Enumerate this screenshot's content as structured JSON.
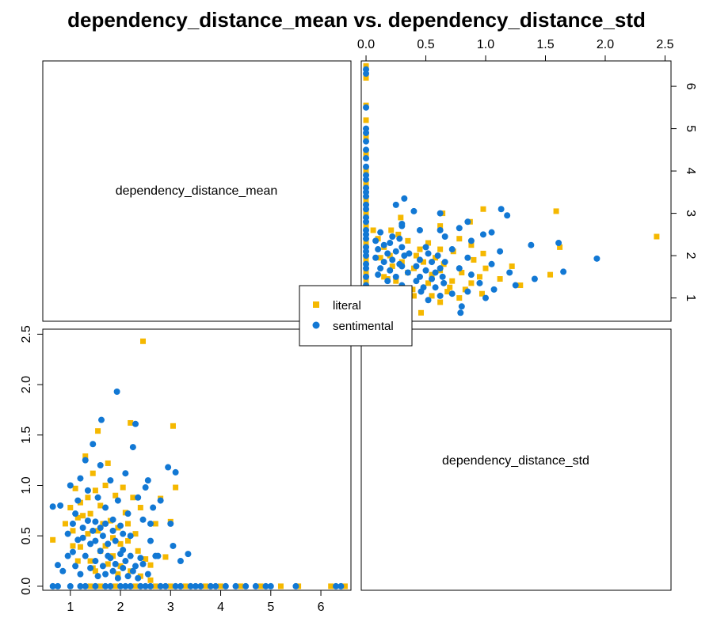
{
  "chart_data": {
    "type": "scatter",
    "layout": "pairs-matrix",
    "title": "dependency_distance_mean vs. dependency_distance_std",
    "variables": [
      "dependency_distance_mean",
      "dependency_distance_std"
    ],
    "axes": {
      "dependency_distance_mean": {
        "range": [
          0.45,
          6.6
        ],
        "ticks": [
          1,
          2,
          3,
          4,
          5,
          6
        ]
      },
      "dependency_distance_std": {
        "range": [
          -0.04,
          2.55
        ],
        "ticks": [
          0.0,
          0.5,
          1.0,
          1.5,
          2.0,
          2.5
        ]
      }
    },
    "tick_labels": {
      "mean": [
        "1",
        "2",
        "3",
        "4",
        "5",
        "6"
      ],
      "std": [
        "0.0",
        "0.5",
        "1.0",
        "1.5",
        "2.0",
        "2.5"
      ]
    },
    "legend": {
      "placement": "center",
      "entries": [
        {
          "name": "literal",
          "color": "#F5B800",
          "marker": "square"
        },
        {
          "name": "sentimental",
          "color": "#1278D4",
          "marker": "circle"
        }
      ]
    },
    "series": [
      {
        "name": "literal",
        "color": "#F5B800",
        "marker": "square",
        "points": [
          [
            0.65,
            0.46
          ],
          [
            0.9,
            0.62
          ],
          [
            1.0,
            0.78
          ],
          [
            1.05,
            0.55
          ],
          [
            1.1,
            0.97
          ],
          [
            1.15,
            0.68
          ],
          [
            1.2,
            0.83
          ],
          [
            1.2,
            0.39
          ],
          [
            1.3,
            1.29
          ],
          [
            1.35,
            0.88
          ],
          [
            1.4,
            0.72
          ],
          [
            1.45,
            1.12
          ],
          [
            1.5,
            0.95
          ],
          [
            1.55,
            0.55
          ],
          [
            1.55,
            1.54
          ],
          [
            1.6,
            0.8
          ],
          [
            1.65,
            0.62
          ],
          [
            1.7,
            1.0
          ],
          [
            1.75,
            1.22
          ],
          [
            1.8,
            0.65
          ],
          [
            1.85,
            0.48
          ],
          [
            1.9,
            0.9
          ],
          [
            1.95,
            0.58
          ],
          [
            2.0,
            0.42
          ],
          [
            2.05,
            0.98
          ],
          [
            2.1,
            0.73
          ],
          [
            2.15,
            0.62
          ],
          [
            2.2,
            1.62
          ],
          [
            2.25,
            0.88
          ],
          [
            2.3,
            0.52
          ],
          [
            2.35,
            0.35
          ],
          [
            2.4,
            0.78
          ],
          [
            2.45,
            2.43
          ],
          [
            2.5,
            0.27
          ],
          [
            2.6,
            0.21
          ],
          [
            2.7,
            0.62
          ],
          [
            2.8,
            0.87
          ],
          [
            2.9,
            0.29
          ],
          [
            3.0,
            0.64
          ],
          [
            3.05,
            1.59
          ],
          [
            3.1,
            0.98
          ],
          [
            1.4,
            0.25
          ],
          [
            1.5,
            0.15
          ],
          [
            1.7,
            0.4
          ],
          [
            1.85,
            0.3
          ],
          [
            2.0,
            0.2
          ],
          [
            2.2,
            0.15
          ],
          [
            2.6,
            0.06
          ],
          [
            1.25,
            0.7
          ],
          [
            1.6,
            0.35
          ],
          [
            1.05,
            0.4
          ],
          [
            1.35,
            0.52
          ],
          [
            1.75,
            0.22
          ],
          [
            1.95,
            0.12
          ],
          [
            2.15,
            0.45
          ],
          [
            2.4,
            0.1
          ],
          [
            1.15,
            0.25
          ],
          [
            1.45,
            0.18
          ],
          [
            1.4,
            0.0
          ],
          [
            1.6,
            0.0
          ],
          [
            1.9,
            0.0
          ],
          [
            2.3,
            0.0
          ],
          [
            2.7,
            0.0
          ],
          [
            3.0,
            0.0
          ],
          [
            3.3,
            0.0
          ],
          [
            3.7,
            0.0
          ],
          [
            4.0,
            0.0
          ],
          [
            4.4,
            0.0
          ],
          [
            4.8,
            0.0
          ],
          [
            5.2,
            0.0
          ],
          [
            5.55,
            0.0
          ],
          [
            6.2,
            0.0
          ],
          [
            6.48,
            0.0
          ]
        ]
      },
      {
        "name": "sentimental",
        "color": "#1278D4",
        "marker": "circle",
        "points": [
          [
            0.65,
            0.79
          ],
          [
            0.75,
            0.21
          ],
          [
            0.8,
            0.8
          ],
          [
            0.85,
            0.15
          ],
          [
            0.95,
            0.52
          ],
          [
            1.0,
            1.0
          ],
          [
            1.05,
            0.34
          ],
          [
            1.1,
            0.72
          ],
          [
            1.15,
            0.46
          ],
          [
            1.2,
            1.07
          ],
          [
            1.25,
            0.58
          ],
          [
            1.3,
            1.25
          ],
          [
            1.35,
            0.95
          ],
          [
            1.4,
            0.42
          ],
          [
            1.45,
            1.41
          ],
          [
            1.5,
            0.64
          ],
          [
            1.55,
            0.88
          ],
          [
            1.6,
            1.2
          ],
          [
            1.62,
            1.65
          ],
          [
            1.65,
            0.5
          ],
          [
            1.7,
            0.78
          ],
          [
            1.75,
            0.3
          ],
          [
            1.8,
            1.05
          ],
          [
            1.85,
            0.66
          ],
          [
            1.9,
            0.45
          ],
          [
            1.93,
            1.93
          ],
          [
            1.95,
            0.85
          ],
          [
            2.0,
            0.6
          ],
          [
            2.05,
            0.36
          ],
          [
            2.1,
            1.12
          ],
          [
            2.15,
            0.72
          ],
          [
            2.2,
            0.5
          ],
          [
            2.25,
            1.38
          ],
          [
            2.3,
            1.61
          ],
          [
            2.35,
            0.88
          ],
          [
            2.4,
            0.28
          ],
          [
            2.45,
            0.66
          ],
          [
            2.5,
            0.98
          ],
          [
            2.55,
            1.05
          ],
          [
            2.6,
            0.45
          ],
          [
            2.65,
            0.78
          ],
          [
            2.7,
            0.3
          ],
          [
            2.8,
            0.85
          ],
          [
            2.95,
            1.18
          ],
          [
            3.0,
            0.62
          ],
          [
            3.05,
            0.4
          ],
          [
            3.1,
            1.13
          ],
          [
            3.2,
            0.25
          ],
          [
            3.35,
            0.32
          ],
          [
            1.1,
            0.2
          ],
          [
            1.2,
            0.12
          ],
          [
            1.3,
            0.3
          ],
          [
            1.4,
            0.18
          ],
          [
            1.5,
            0.25
          ],
          [
            1.55,
            0.1
          ],
          [
            1.6,
            0.35
          ],
          [
            1.65,
            0.2
          ],
          [
            1.7,
            0.12
          ],
          [
            1.75,
            0.42
          ],
          [
            1.8,
            0.28
          ],
          [
            1.85,
            0.15
          ],
          [
            1.9,
            0.22
          ],
          [
            1.95,
            0.08
          ],
          [
            2.0,
            0.32
          ],
          [
            2.05,
            0.18
          ],
          [
            2.1,
            0.25
          ],
          [
            2.15,
            0.1
          ],
          [
            2.2,
            0.3
          ],
          [
            2.25,
            0.15
          ],
          [
            2.3,
            0.2
          ],
          [
            2.35,
            0.08
          ],
          [
            2.45,
            0.22
          ],
          [
            2.55,
            0.12
          ],
          [
            1.45,
            0.55
          ],
          [
            1.35,
            0.65
          ],
          [
            1.25,
            0.48
          ],
          [
            1.15,
            0.85
          ],
          [
            1.85,
            0.55
          ],
          [
            2.05,
            0.52
          ],
          [
            1.6,
            0.58
          ],
          [
            1.7,
            0.62
          ],
          [
            0.95,
            0.3
          ],
          [
            1.05,
            0.62
          ],
          [
            2.6,
            0.62
          ],
          [
            2.75,
            0.3
          ],
          [
            1.5,
            0.45
          ],
          [
            0.65,
            0.0
          ],
          [
            0.75,
            0.0
          ],
          [
            1.0,
            0.0
          ],
          [
            1.2,
            0.0
          ],
          [
            1.3,
            0.0
          ],
          [
            1.5,
            0.0
          ],
          [
            1.7,
            0.0
          ],
          [
            1.8,
            0.0
          ],
          [
            2.0,
            0.0
          ],
          [
            2.1,
            0.0
          ],
          [
            2.2,
            0.0
          ],
          [
            2.4,
            0.0
          ],
          [
            2.5,
            0.0
          ],
          [
            2.6,
            0.0
          ],
          [
            2.8,
            0.0
          ],
          [
            2.9,
            0.0
          ],
          [
            3.1,
            0.0
          ],
          [
            3.2,
            0.0
          ],
          [
            3.4,
            0.0
          ],
          [
            3.5,
            0.0
          ],
          [
            3.6,
            0.0
          ],
          [
            3.8,
            0.0
          ],
          [
            3.9,
            0.0
          ],
          [
            4.1,
            0.0
          ],
          [
            4.3,
            0.0
          ],
          [
            4.5,
            0.0
          ],
          [
            4.7,
            0.0
          ],
          [
            4.9,
            0.0
          ],
          [
            5.0,
            0.0
          ],
          [
            5.5,
            0.0
          ],
          [
            6.3,
            0.0
          ],
          [
            6.4,
            0.0
          ]
        ]
      }
    ]
  }
}
